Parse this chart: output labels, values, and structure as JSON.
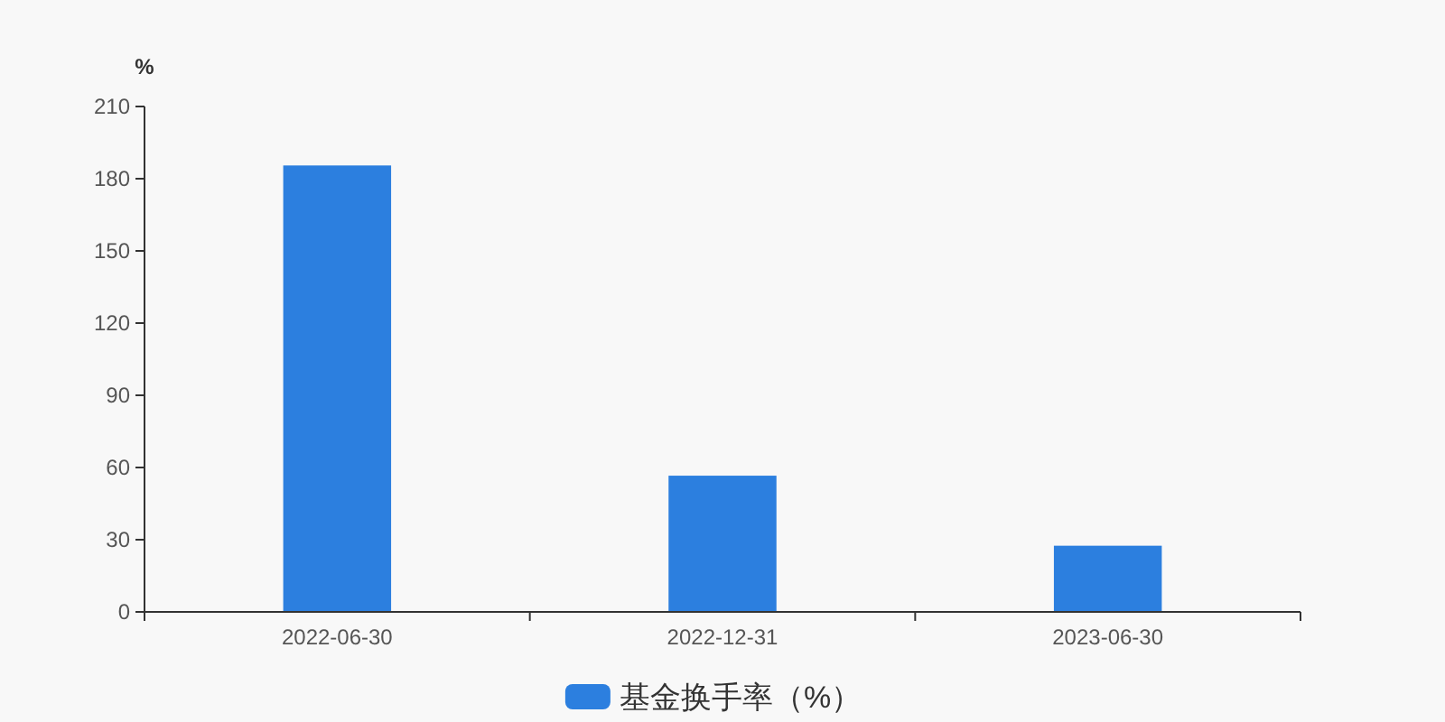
{
  "chart_data": {
    "type": "bar",
    "ylabel": "%",
    "categories": [
      "2022-06-30",
      "2022-12-31",
      "2023-06-30"
    ],
    "series": [
      {
        "name": "基金换手率（%）",
        "color": "#2c7fdf",
        "values": [
          185.5,
          56.6,
          27.5
        ]
      }
    ],
    "ylim": [
      0,
      210
    ],
    "yticks": [
      0,
      30,
      60,
      90,
      120,
      150,
      180,
      210
    ],
    "grid": false,
    "legend": "bottom"
  }
}
